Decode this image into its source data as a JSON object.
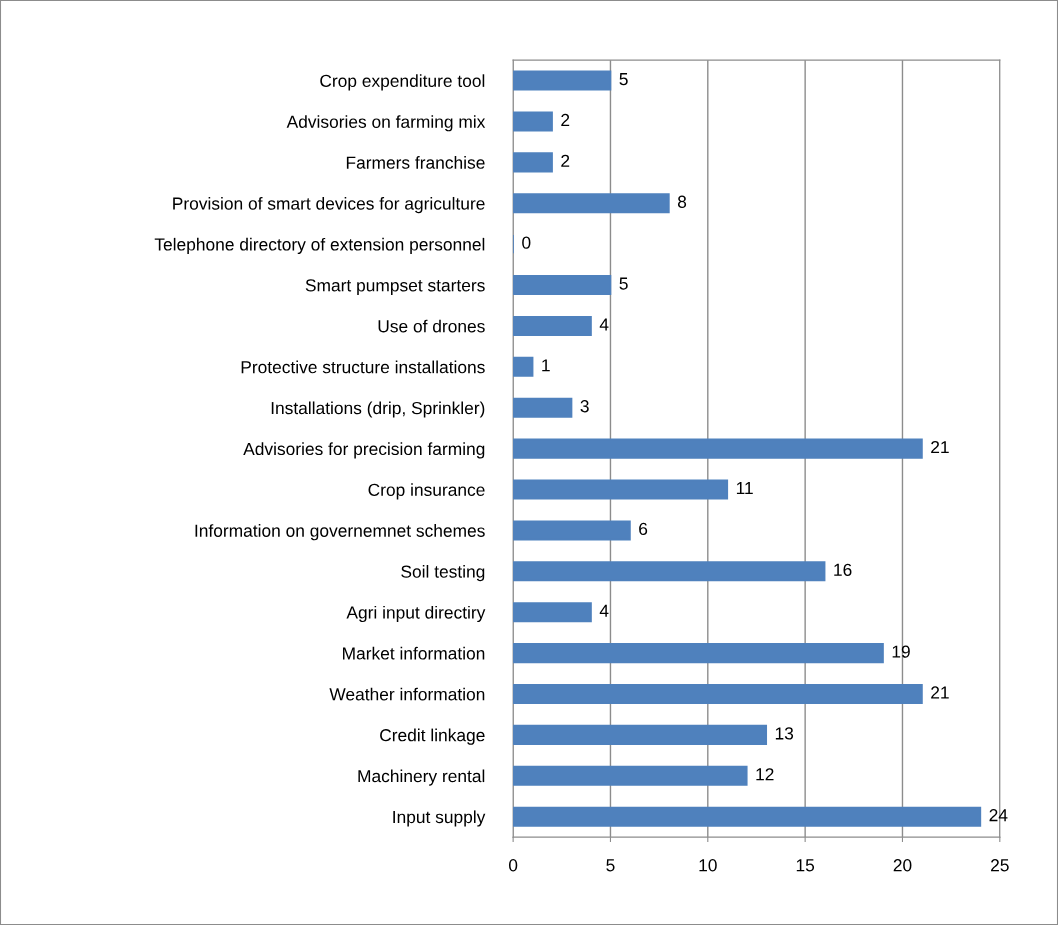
{
  "chart_data": {
    "type": "bar",
    "orientation": "horizontal",
    "categories": [
      "Crop expenditure tool",
      "Advisories on farming mix",
      "Farmers franchise",
      "Provision of smart devices for agriculture",
      "Telephone directory of extension personnel",
      "Smart pumpset starters",
      "Use of drones",
      "Protective structure installations",
      "Installations (drip, Sprinkler)",
      "Advisories for precision farming",
      "Crop insurance",
      "Information on governemnet schemes",
      "Soil testing",
      "Agri input directiry",
      "Market information",
      "Weather information",
      "Credit linkage",
      "Machinery rental",
      "Input supply"
    ],
    "values": [
      5,
      2,
      2,
      8,
      0,
      5,
      4,
      1,
      3,
      21,
      11,
      6,
      16,
      4,
      19,
      21,
      13,
      12,
      24
    ],
    "color": "#4f81bd",
    "xlim": [
      0,
      25
    ],
    "xticks": [
      0,
      5,
      10,
      15,
      20,
      25
    ],
    "grid": "x",
    "data_labels": true,
    "legend": false
  }
}
